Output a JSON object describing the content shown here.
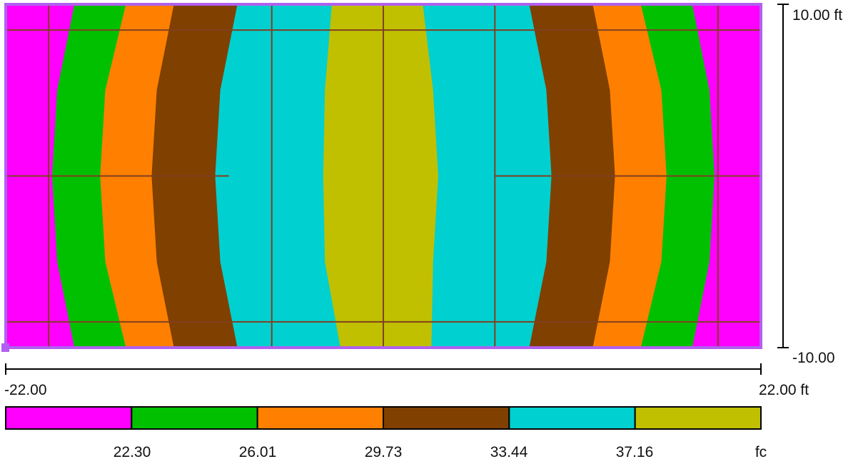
{
  "chart_data": {
    "type": "heatmap",
    "title": "",
    "unit": "fc",
    "x_axis": {
      "min": -22.0,
      "max": 22.0,
      "min_label": "-22.00",
      "max_label": "22.00 ft"
    },
    "y_axis": {
      "min": -10.0,
      "max": 10.0,
      "min_label": "-10.00",
      "max_label": "10.00 ft"
    },
    "legend": {
      "placement": "bottom",
      "colors": [
        "#ff00ff",
        "#00c000",
        "#ff8000",
        "#804000",
        "#00d0d0",
        "#c0c000"
      ],
      "thresholds": [
        "22.30",
        "26.01",
        "29.73",
        "33.44",
        "37.16"
      ]
    },
    "contour_bands": [
      {
        "band": 1,
        "color": "#00c000",
        "min": 22.3,
        "max": 26.01,
        "left_boundary": [
          [
            -18.0,
            10.0
          ],
          [
            -19.0,
            5.0
          ],
          [
            -19.3,
            0.0
          ],
          [
            -19.0,
            -5.0
          ],
          [
            -18.0,
            -10.0
          ]
        ],
        "right_boundary": [
          [
            18.0,
            10.0
          ],
          [
            19.0,
            5.0
          ],
          [
            19.3,
            0.0
          ],
          [
            19.0,
            -5.0
          ],
          [
            18.0,
            -10.0
          ]
        ]
      },
      {
        "band": 2,
        "color": "#ff8000",
        "min": 26.01,
        "max": 29.73,
        "left_boundary": [
          [
            -15.0,
            10.0
          ],
          [
            -16.2,
            5.0
          ],
          [
            -16.5,
            0.0
          ],
          [
            -16.2,
            -5.0
          ],
          [
            -15.0,
            -10.0
          ]
        ],
        "right_boundary": [
          [
            15.0,
            10.0
          ],
          [
            16.2,
            5.0
          ],
          [
            16.5,
            0.0
          ],
          [
            16.2,
            -5.0
          ],
          [
            15.0,
            -10.0
          ]
        ]
      },
      {
        "band": 3,
        "color": "#804000",
        "min": 29.73,
        "max": 33.44,
        "left_boundary": [
          [
            -12.2,
            10.0
          ],
          [
            -13.2,
            5.0
          ],
          [
            -13.5,
            0.0
          ],
          [
            -13.2,
            -5.0
          ],
          [
            -12.2,
            -10.0
          ]
        ],
        "right_boundary": [
          [
            12.2,
            10.0
          ],
          [
            13.2,
            5.0
          ],
          [
            13.5,
            0.0
          ],
          [
            13.2,
            -5.0
          ],
          [
            12.2,
            -10.0
          ]
        ]
      },
      {
        "band": 4,
        "color": "#00d0d0",
        "min": 33.44,
        "max": 37.16,
        "left_boundary": [
          [
            -8.5,
            10.0
          ],
          [
            -9.5,
            5.0
          ],
          [
            -9.8,
            0.0
          ],
          [
            -9.5,
            -5.0
          ],
          [
            -8.5,
            -10.0
          ]
        ],
        "right_boundary": [
          [
            8.5,
            10.0
          ],
          [
            9.5,
            5.0
          ],
          [
            9.8,
            0.0
          ],
          [
            9.5,
            -5.0
          ],
          [
            8.5,
            -10.0
          ]
        ]
      },
      {
        "band": 5,
        "color": "#c0c000",
        "min": 37.16,
        "max": null,
        "left_boundary": [
          [
            -3.0,
            10.0
          ],
          [
            -3.4,
            5.0
          ],
          [
            -3.5,
            0.0
          ],
          [
            -3.4,
            -5.0
          ],
          [
            -2.5,
            -10.0
          ]
        ],
        "right_boundary": [
          [
            2.3,
            10.0
          ],
          [
            2.9,
            5.0
          ],
          [
            3.2,
            0.0
          ],
          [
            2.9,
            -5.0
          ],
          [
            2.8,
            -10.0
          ]
        ]
      }
    ],
    "grid_lines": {
      "color": "#804020",
      "horizontal": [
        {
          "y": 8.5,
          "x_from": -22.0,
          "x_to": 22.0
        },
        {
          "y": 0.0,
          "x_from": -22.0,
          "x_to": -9.0
        },
        {
          "y": 0.0,
          "x_from": 6.5,
          "x_to": 22.0
        },
        {
          "y": -8.5,
          "x_from": -22.0,
          "x_to": 22.0
        }
      ],
      "vertical": [
        {
          "x": -19.5,
          "y_from": -10.0,
          "y_to": 10.0
        },
        {
          "x": -6.5,
          "y_from": -10.0,
          "y_to": 10.0
        },
        {
          "x": 0.0,
          "y_from": -10.0,
          "y_to": 10.0
        },
        {
          "x": 6.5,
          "y_from": -10.0,
          "y_to": 10.0
        },
        {
          "x": 19.5,
          "y_from": -10.0,
          "y_to": 10.0
        }
      ]
    },
    "grid": true,
    "colors": {
      "outer_band": "#ff00ff",
      "border": "#b060f0",
      "axis": "#000000"
    }
  }
}
